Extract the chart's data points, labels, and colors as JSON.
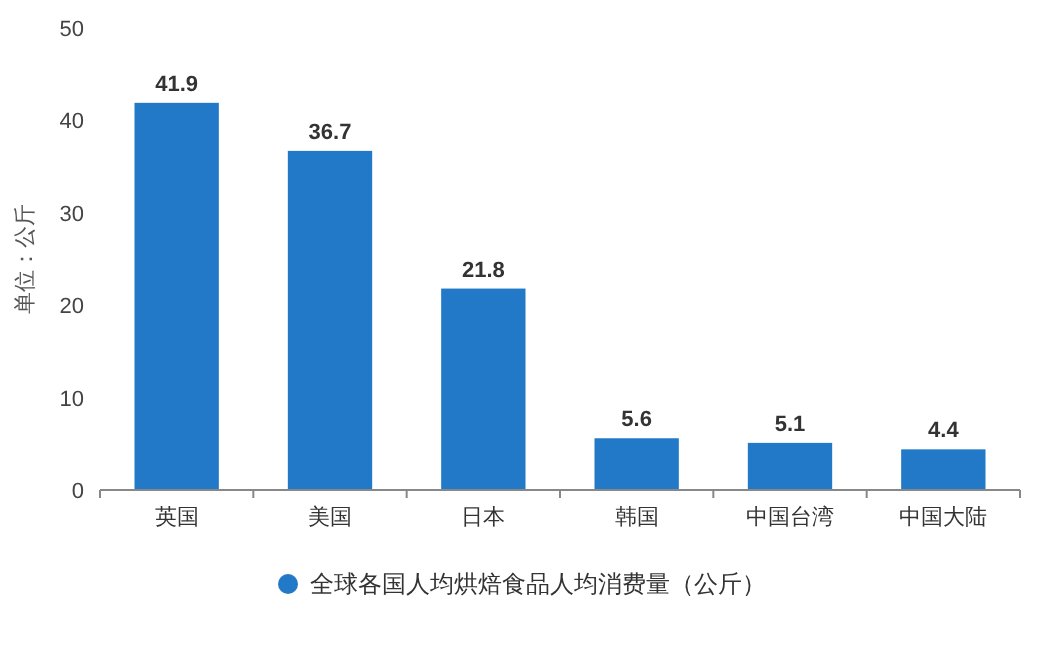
{
  "chart_data": {
    "type": "bar",
    "ylabel": "单位：公斤",
    "categories": [
      "英国",
      "美国",
      "日本",
      "韩国",
      "中国台湾",
      "中国大陆"
    ],
    "series": [
      {
        "name": "全球各国人均烘焙食品人均消费量（公斤）",
        "color": "#2179c7",
        "values": [
          41.9,
          36.7,
          21.8,
          5.6,
          5.1,
          4.4
        ]
      }
    ],
    "ylim": [
      0,
      50
    ],
    "yticks": [
      0,
      10,
      20,
      30,
      40,
      50
    ],
    "data_labels": true,
    "legend": "bottom",
    "grid": false
  }
}
